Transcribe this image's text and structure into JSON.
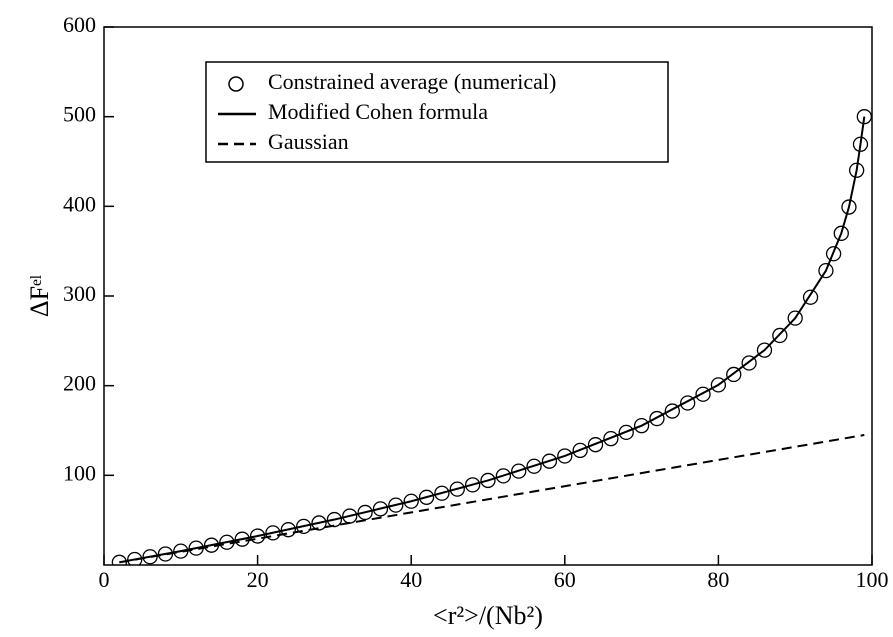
{
  "chart_data": {
    "type": "line",
    "xlabel": "<r²>/(Nb²)",
    "ylabel": "ΔFᵉˡ",
    "xlim": [
      0,
      100
    ],
    "xticks": [
      0,
      20,
      40,
      60,
      80,
      100
    ],
    "ylim": [
      0,
      600
    ],
    "yticks": [
      100,
      200,
      300,
      400,
      500,
      600
    ],
    "legend": "upper left",
    "series": [
      {
        "name": "Constrained average (numerical)",
        "color": "#000000",
        "marker": "circle",
        "x": [
          2,
          4,
          6,
          8,
          10,
          12,
          14,
          16,
          18,
          20,
          22,
          24,
          26,
          28,
          30,
          32,
          34,
          36,
          38,
          40,
          42,
          44,
          46,
          48,
          50,
          52,
          54,
          56,
          58,
          60,
          62,
          64,
          66,
          68,
          70,
          72,
          74,
          76,
          78,
          80,
          82,
          84,
          86,
          88,
          90,
          92,
          94,
          95,
          96,
          97,
          98,
          98.5,
          99
        ],
        "values": [
          3.0,
          6.1,
          9.2,
          12.3,
          15.5,
          18.8,
          22.1,
          25.4,
          28.8,
          32.3,
          35.8,
          39.4,
          43.1,
          46.9,
          50.7,
          54.6,
          58.6,
          62.6,
          66.8,
          71.1,
          75.5,
          80.0,
          84.6,
          89.4,
          94.3,
          99.4,
          104.7,
          110.1,
          115.8,
          121.6,
          127.8,
          134.2,
          140.9,
          147.9,
          155.4,
          163.3,
          171.7,
          180.7,
          190.4,
          200.9,
          212.5,
          225.3,
          239.6,
          256.0,
          275.3,
          298.6,
          328.3,
          347.1,
          369.9,
          399.2,
          440.2,
          469.2,
          500
        ]
      },
      {
        "name": "Modified Cohen formula",
        "color": "#000000",
        "style": "solid",
        "x": [
          2,
          10,
          20,
          30,
          40,
          50,
          60,
          70,
          80,
          86,
          90,
          94,
          96,
          97,
          98,
          98.5,
          99
        ],
        "values": [
          3.0,
          15.5,
          32.3,
          50.7,
          71.1,
          94.3,
          121.6,
          155.4,
          200.9,
          239.6,
          275.3,
          328.3,
          369.9,
          399.2,
          440.2,
          469.2,
          500
        ]
      },
      {
        "name": "Gaussian",
        "color": "#000000",
        "style": "dashed",
        "x": [
          2,
          99
        ],
        "values": [
          3,
          145
        ]
      }
    ]
  }
}
